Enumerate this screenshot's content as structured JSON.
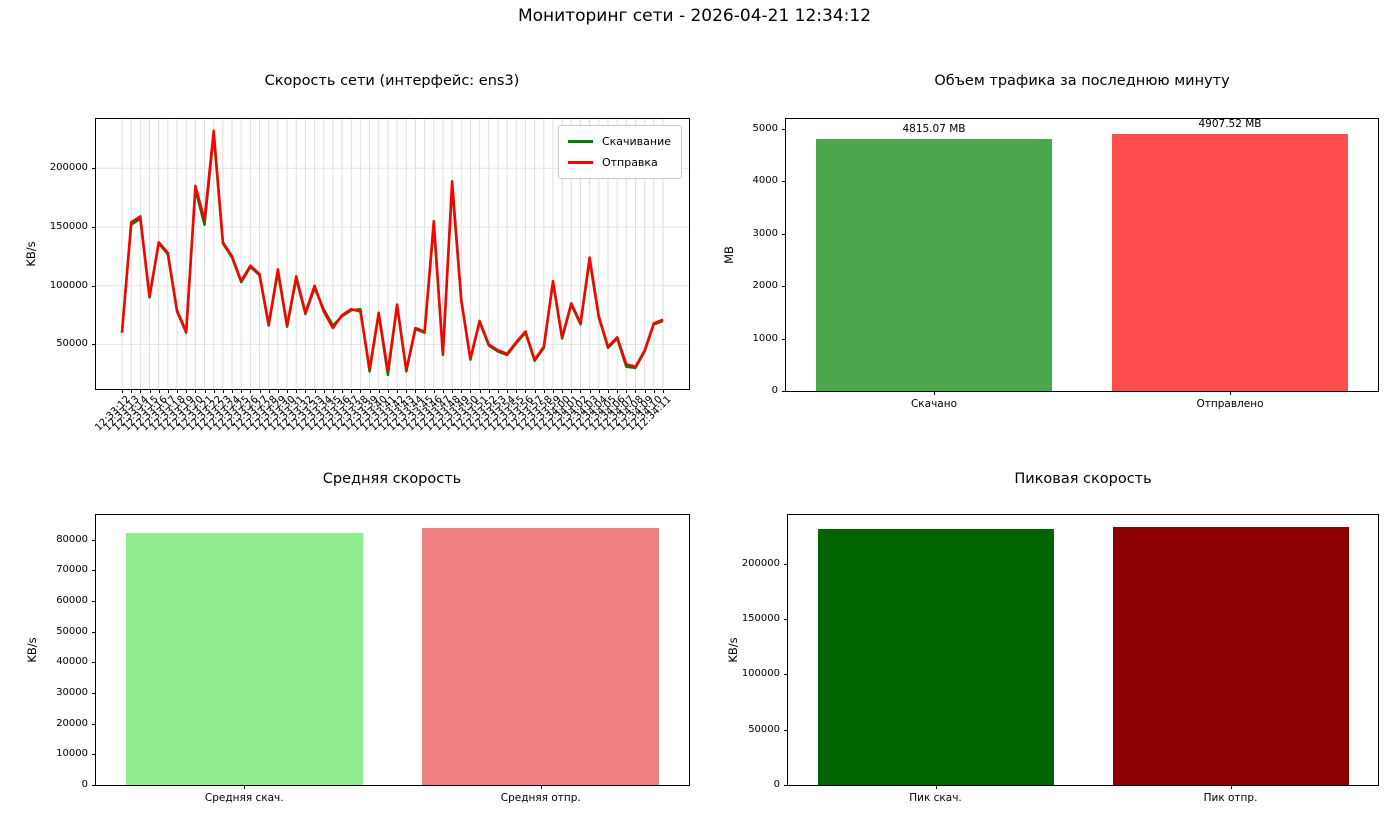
{
  "page": {
    "title": "Мониторинг сети - 2026-04-21 12:34:12"
  },
  "chart_data": [
    {
      "id": "speed",
      "type": "line",
      "title": "Скорость сети (интерфейс: ens3)",
      "ylabel": "KB/s",
      "ylim": [
        12000,
        242000
      ],
      "yticks": [
        50000,
        100000,
        150000,
        200000
      ],
      "grid": true,
      "legend_position": "upper right",
      "x": [
        "12:33:12",
        "12:33:13",
        "12:33:14",
        "12:33:15",
        "12:33:16",
        "12:33:17",
        "12:33:18",
        "12:33:19",
        "12:33:20",
        "12:33:21",
        "12:33:22",
        "12:33:23",
        "12:33:24",
        "12:33:25",
        "12:33:26",
        "12:33:27",
        "12:33:28",
        "12:33:29",
        "12:33:30",
        "12:33:31",
        "12:33:32",
        "12:33:33",
        "12:33:34",
        "12:33:35",
        "12:33:36",
        "12:33:37",
        "12:33:38",
        "12:33:39",
        "12:33:40",
        "12:33:41",
        "12:33:42",
        "12:33:43",
        "12:33:44",
        "12:33:45",
        "12:33:46",
        "12:33:47",
        "12:33:48",
        "12:33:49",
        "12:33:50",
        "12:33:51",
        "12:33:52",
        "12:33:53",
        "12:33:54",
        "12:33:55",
        "12:33:56",
        "12:33:57",
        "12:33:58",
        "12:33:59",
        "12:34:00",
        "12:34:01",
        "12:34:02",
        "12:34:03",
        "12:34:04",
        "12:34:05",
        "12:34:06",
        "12:34:07",
        "12:34:08",
        "12:34:09",
        "12:34:10",
        "12:34:11"
      ],
      "series": [
        {
          "name": "Скачивание",
          "color": "#008000",
          "values": [
            60500,
            152000,
            157000,
            90000,
            136000,
            127000,
            78000,
            60000,
            182000,
            152000,
            229000,
            136000,
            124000,
            103000,
            116000,
            109000,
            66000,
            112000,
            65000,
            106000,
            76000,
            98000,
            80000,
            66000,
            74000,
            79000,
            80000,
            27000,
            76000,
            24000,
            83000,
            27000,
            63000,
            60000,
            152000,
            41000,
            185000,
            87000,
            37000,
            69000,
            49000,
            44000,
            41000,
            51000,
            60000,
            36000,
            47000,
            103000,
            55000,
            84000,
            67000,
            122000,
            73000,
            47000,
            55000,
            31000,
            30000,
            44000,
            67000,
            70000
          ]
        },
        {
          "name": "Отправка",
          "color": "#ff0000",
          "values": [
            60000,
            154000,
            159000,
            91000,
            137000,
            128000,
            79000,
            61000,
            185000,
            156000,
            232000,
            137000,
            125000,
            104000,
            117000,
            110000,
            67000,
            114000,
            66000,
            108000,
            77000,
            100000,
            78000,
            64000,
            75000,
            80000,
            78000,
            29000,
            77000,
            27000,
            84000,
            28000,
            64000,
            61000,
            155000,
            42000,
            189000,
            88000,
            38000,
            70000,
            50000,
            45000,
            42000,
            52000,
            61000,
            37000,
            48000,
            104000,
            56000,
            85000,
            68000,
            124000,
            74000,
            48000,
            56000,
            33000,
            31000,
            45000,
            68000,
            71000
          ]
        }
      ]
    },
    {
      "id": "traffic",
      "type": "bar",
      "title": "Объем трафика за последнюю минуту",
      "ylabel": "MB",
      "ylim": [
        0,
        5190
      ],
      "yticks": [
        0,
        1000,
        2000,
        3000,
        4000,
        5000
      ],
      "grid": false,
      "categories": [
        "Скачано",
        "Отправлено"
      ],
      "values": [
        4815.07,
        4907.52
      ],
      "bar_labels": [
        "4815.07 MB",
        "4907.52 MB"
      ],
      "colors": [
        "#4ca64c",
        "#ff4d4d"
      ]
    },
    {
      "id": "avg",
      "type": "bar",
      "title": "Средняя скорость",
      "ylabel": "KB/s",
      "ylim": [
        0,
        88100
      ],
      "yticks": [
        0,
        10000,
        20000,
        30000,
        40000,
        50000,
        60000,
        70000,
        80000
      ],
      "grid": false,
      "categories": [
        "Средняя скач.",
        "Средняя отпр."
      ],
      "values": [
        82177,
        83755
      ],
      "colors": [
        "#90ee90",
        "#f08080"
      ]
    },
    {
      "id": "peak",
      "type": "bar",
      "title": "Пиковая скорость",
      "ylabel": "KB/s",
      "ylim": [
        0,
        244000
      ],
      "yticks": [
        0,
        50000,
        100000,
        150000,
        200000
      ],
      "grid": false,
      "categories": [
        "Пик скач.",
        "Пик отпр."
      ],
      "values": [
        231500,
        233500
      ],
      "colors": [
        "#006400",
        "#8b0000"
      ]
    }
  ]
}
